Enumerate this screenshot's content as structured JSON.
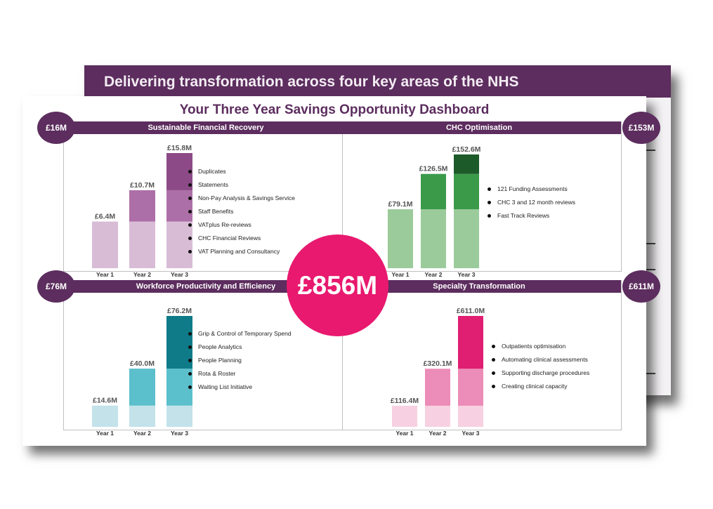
{
  "back_slide": {
    "title": "Delivering transformation across four key areas of the NHS"
  },
  "dashboard": {
    "title": "Your Three Year Savings Opportunity Dashboard",
    "total": "£856M"
  },
  "colors": {
    "header": "#5c2d5e",
    "total_circle": "#e8196f"
  },
  "quadrants": [
    {
      "title": "Sustainable Financial Recovery",
      "badge": "£16M",
      "items": [
        "Duplicates",
        "Statements",
        "Non-Pay Analysis & Savings Service",
        "Staff Benefits",
        "VATplus Re-reviews",
        "CHC Financial Reviews",
        "VAT Planning and Consultancy"
      ]
    },
    {
      "title": "CHC Optimisation",
      "badge": "£153M",
      "items": [
        "121 Funding Assessments",
        "CHC 3 and 12 month reviews",
        "Fast Track Reviews"
      ]
    },
    {
      "title": "Workforce Productivity and Efficiency",
      "badge": "£76M",
      "items": [
        "Grip & Control of Temporary Spend",
        "People Analytics",
        "People Planning",
        "Rota & Roster",
        "Waiting List Initiative"
      ]
    },
    {
      "title": "Specialty Transformation",
      "badge": "£611M",
      "items": [
        "Outpatients optimisation",
        "Automating clinical assessments",
        "Supporting discharge procedures",
        "Creating clinical capacity"
      ]
    }
  ],
  "chart_data": [
    {
      "type": "bar",
      "title": "Sustainable Financial Recovery",
      "categories": [
        "Year 1",
        "Year 2",
        "Year 3"
      ],
      "values": [
        6.4,
        10.7,
        15.8
      ],
      "labels": [
        "£6.4M",
        "£10.7M",
        "£15.8M"
      ],
      "unit": "£M",
      "colors": [
        "#d8bcd6",
        "#ad6fa7",
        "#8c4a86"
      ]
    },
    {
      "type": "bar",
      "title": "CHC Optimisation",
      "categories": [
        "Year 1",
        "Year 2",
        "Year 3"
      ],
      "values": [
        79.1,
        126.5,
        152.6
      ],
      "labels": [
        "£79.1M",
        "£126.5M",
        "£152.6M"
      ],
      "unit": "£M",
      "colors": [
        "#9bcb9b",
        "#3a9a4a",
        "#1c5a2a"
      ]
    },
    {
      "type": "bar",
      "title": "Workforce Productivity and Efficiency",
      "categories": [
        "Year 1",
        "Year 2",
        "Year 3"
      ],
      "values": [
        14.6,
        40.0,
        76.2
      ],
      "labels": [
        "£14.6M",
        "£40.0M",
        "£76.2M"
      ],
      "unit": "£M",
      "colors": [
        "#c3e2ea",
        "#5bbfcc",
        "#0f7b88"
      ]
    },
    {
      "type": "bar",
      "title": "Specialty Transformation",
      "categories": [
        "Year 1",
        "Year 2",
        "Year 3"
      ],
      "values": [
        116.4,
        320.1,
        611.0
      ],
      "labels": [
        "£116.4M",
        "£320.1M",
        "£611.0M"
      ],
      "unit": "£M",
      "colors": [
        "#f7d1e1",
        "#ec8cb8",
        "#e01e72"
      ]
    }
  ]
}
